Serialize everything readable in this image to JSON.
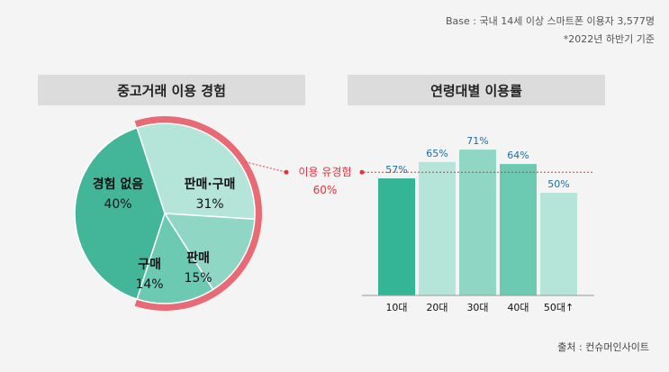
{
  "notes": {
    "base": "Base : 국내 14세 이상 스마트폰 이용자 3,577명",
    "period": "*2022년 하반기 기준"
  },
  "source": "출처 : 컨슈머인사이트",
  "colors": {
    "pie_none": "#43b69a",
    "pie_sellbuy": "#b5e5d8",
    "pie_sell": "#8fd6c4",
    "pie_buy": "#6ccab3",
    "ring": "#e86a74",
    "bar_10": "#34b596",
    "bar_20": "#b5e5d8",
    "bar_30": "#8fd6c4",
    "bar_40": "#6ccab3",
    "bar_50": "#b5e5d8",
    "bar_label": "#1a6fa8",
    "red": "#e2333c"
  },
  "chart_data": [
    {
      "type": "pie",
      "title": "중고거래 이용 경험",
      "slices": [
        {
          "label": "경험 없음",
          "value": 40,
          "value_label": "40%"
        },
        {
          "label": "판매·구매",
          "value": 31,
          "value_label": "31%"
        },
        {
          "label": "판매",
          "value": 15,
          "value_label": "15%"
        },
        {
          "label": "구매",
          "value": 14,
          "value_label": "14%"
        }
      ],
      "annotation": {
        "label": "이용 유경험",
        "value": 60,
        "value_label": "60%"
      }
    },
    {
      "type": "bar",
      "title": "연령대별 이용률",
      "categories": [
        "10대",
        "20대",
        "30대",
        "40대",
        "50대↑"
      ],
      "values": [
        57,
        65,
        71,
        64,
        50
      ],
      "value_labels": [
        "57%",
        "65%",
        "71%",
        "64%",
        "50%"
      ],
      "reference_line": 60,
      "ylim": [
        0,
        100
      ]
    }
  ]
}
